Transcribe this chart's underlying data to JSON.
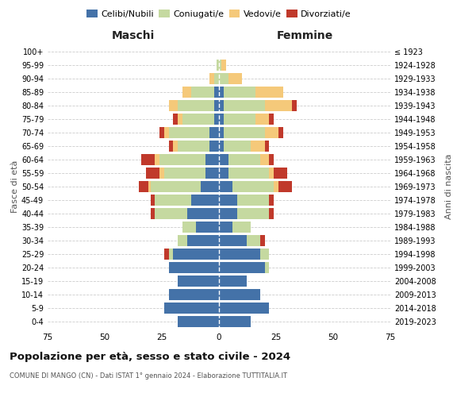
{
  "age_groups": [
    "0-4",
    "5-9",
    "10-14",
    "15-19",
    "20-24",
    "25-29",
    "30-34",
    "35-39",
    "40-44",
    "45-49",
    "50-54",
    "55-59",
    "60-64",
    "65-69",
    "70-74",
    "75-79",
    "80-84",
    "85-89",
    "90-94",
    "95-99",
    "100+"
  ],
  "birth_years": [
    "2019-2023",
    "2014-2018",
    "2009-2013",
    "2004-2008",
    "1999-2003",
    "1994-1998",
    "1989-1993",
    "1984-1988",
    "1979-1983",
    "1974-1978",
    "1969-1973",
    "1964-1968",
    "1959-1963",
    "1954-1958",
    "1949-1953",
    "1944-1948",
    "1939-1943",
    "1934-1938",
    "1929-1933",
    "1924-1928",
    "≤ 1923"
  ],
  "maschi": {
    "celibi": [
      18,
      24,
      22,
      18,
      22,
      20,
      14,
      10,
      14,
      12,
      8,
      6,
      6,
      4,
      4,
      2,
      2,
      2,
      0,
      0,
      0
    ],
    "coniugati": [
      0,
      0,
      0,
      0,
      0,
      2,
      4,
      6,
      14,
      16,
      22,
      18,
      20,
      14,
      18,
      14,
      16,
      10,
      2,
      1,
      0
    ],
    "vedovi": [
      0,
      0,
      0,
      0,
      0,
      0,
      0,
      0,
      0,
      0,
      1,
      2,
      2,
      2,
      2,
      2,
      4,
      4,
      2,
      0,
      0
    ],
    "divorziati": [
      0,
      0,
      0,
      0,
      0,
      2,
      0,
      0,
      2,
      2,
      4,
      6,
      6,
      2,
      2,
      2,
      0,
      0,
      0,
      0,
      0
    ]
  },
  "femmine": {
    "nubili": [
      14,
      22,
      18,
      12,
      20,
      18,
      12,
      6,
      8,
      8,
      6,
      4,
      4,
      2,
      2,
      2,
      2,
      2,
      0,
      0,
      0
    ],
    "coniugate": [
      0,
      0,
      0,
      0,
      2,
      4,
      6,
      8,
      14,
      14,
      18,
      18,
      14,
      12,
      18,
      14,
      18,
      14,
      4,
      1,
      0
    ],
    "vedove": [
      0,
      0,
      0,
      0,
      0,
      0,
      0,
      0,
      0,
      0,
      2,
      2,
      4,
      6,
      6,
      6,
      12,
      12,
      6,
      2,
      0
    ],
    "divorziate": [
      0,
      0,
      0,
      0,
      0,
      0,
      2,
      0,
      2,
      2,
      6,
      6,
      2,
      2,
      2,
      2,
      2,
      0,
      0,
      0,
      0
    ]
  },
  "colors": {
    "celibi_nubili": "#4472a8",
    "coniugati": "#c5d9a0",
    "vedovi": "#f5c97a",
    "divorziati": "#c0392b"
  },
  "title": "Popolazione per età, sesso e stato civile - 2024",
  "subtitle": "COMUNE DI MANGO (CN) - Dati ISTAT 1° gennaio 2024 - Elaborazione TUTTITALIA.IT",
  "xlabel_maschi": "Maschi",
  "xlabel_femmine": "Femmine",
  "ylabel_left": "Fasce di età",
  "ylabel_right": "Anni di nascita",
  "xlim": 75,
  "background_color": "#ffffff",
  "grid_color": "#cccccc"
}
